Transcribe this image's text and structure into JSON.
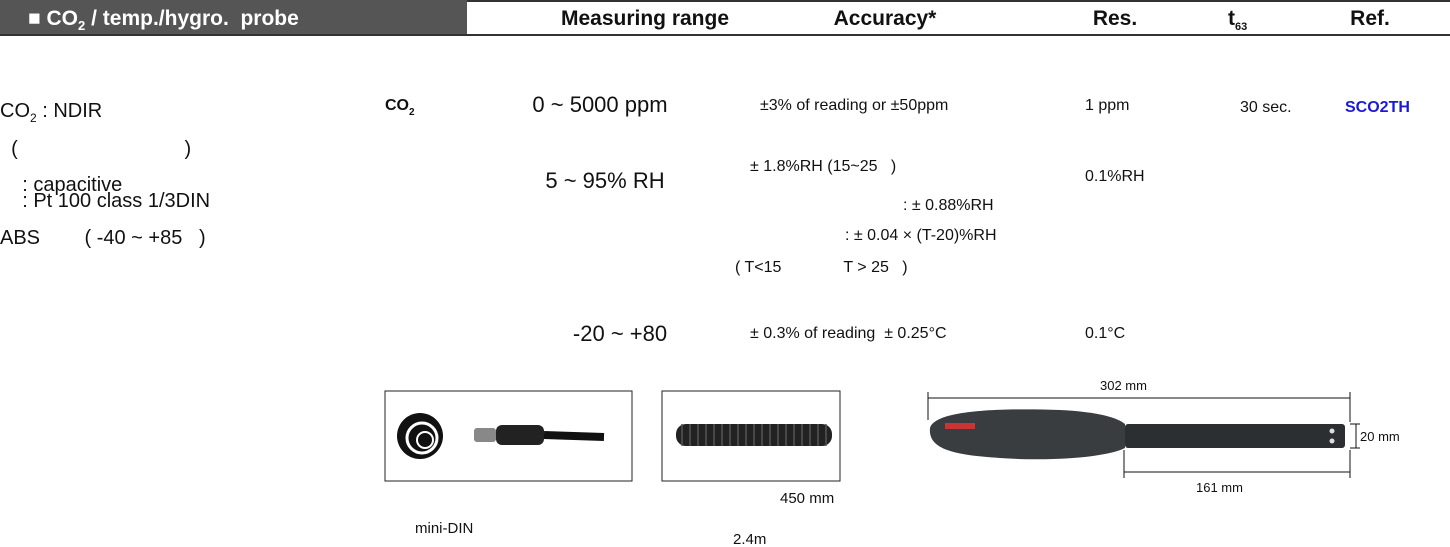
{
  "header": {
    "title_main": "■ CO",
    "title_sub": "2",
    "title_rest": " / temp./hygro.  probe",
    "columns": [
      "Measuring range",
      "Accuracy*",
      "Res."
    ],
    "t_main": "t",
    "t_sub": "63",
    "ref": "Ref."
  },
  "description": {
    "first_main": "CO",
    "first_sub": "2",
    "first_rest": " : NDIR",
    "lines": [
      "  (                              )",
      "    : capacitive",
      "    : Pt 100 class 1/3DIN",
      "ABS        ( -40 ~ +85   )"
    ]
  },
  "rows": [
    {
      "label_main": "CO",
      "label_sub": "2",
      "range": "0 ~ 5000 ppm",
      "accuracy": [
        "±3% of reading or ±50ppm"
      ],
      "resolution": "1 ppm",
      "t63": "30 sec.",
      "ref": "SCO2TH"
    },
    {
      "range": "5 ~ 95% RH",
      "accuracy": [
        "± 1.8%RH (15~25   )",
        ": ± 0.88%RH",
        ": ± 0.04 × (T-20)%RH",
        "( T<15              T > 25   )"
      ],
      "resolution": "0.1%RH"
    },
    {
      "range": "-20 ~ +80",
      "accuracy": [
        "± 0.3% of reading  ± 0.25°C"
      ],
      "resolution": "0.1°C"
    }
  ],
  "figures": {
    "connector_caption": "mini-DIN",
    "cable_length": "450 mm",
    "cable_extended": "2.4m",
    "probe_length": "302 mm",
    "handle_length": "161 mm",
    "probe_diameter": "20 mm"
  }
}
